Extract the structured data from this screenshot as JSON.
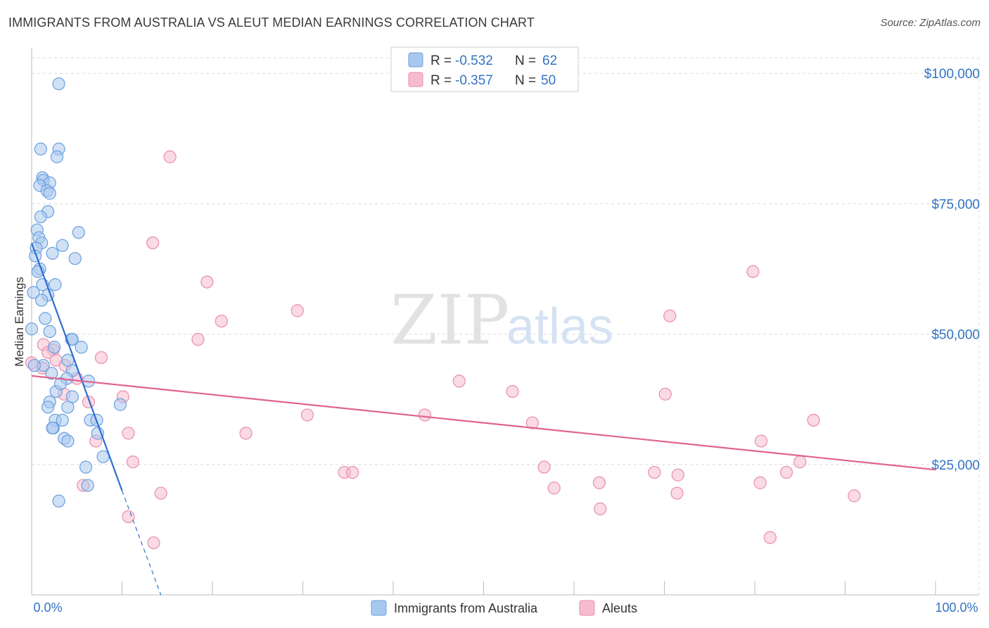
{
  "header": {
    "title": "IMMIGRANTS FROM AUSTRALIA VS ALEUT MEDIAN EARNINGS CORRELATION CHART",
    "source": "Source: ZipAtlas.com"
  },
  "watermark": {
    "zip": "ZIP",
    "atlas": "atlas"
  },
  "colors": {
    "blue_fill": "#a9c8ef",
    "blue_stroke": "#6a9fde",
    "blue_line": "#2f6fd0",
    "pink_fill": "#f6bccd",
    "pink_stroke": "#e98eab",
    "pink_line": "#e0648e",
    "axis_text": "#3373c4",
    "grid": "#dcdcdc"
  },
  "legend": {
    "rows": [
      {
        "r_label": "R = ",
        "r_value": "-0.532",
        "n_label": "N = ",
        "n_value": "62"
      },
      {
        "r_label": "R = ",
        "r_value": "-0.357",
        "n_label": "N = ",
        "n_value": "50"
      }
    ]
  },
  "chart_data": {
    "type": "scatter",
    "title": "IMMIGRANTS FROM AUSTRALIA VS ALEUT MEDIAN EARNINGS CORRELATION CHART",
    "xlabel": "",
    "ylabel": "Median Earnings",
    "xlim": [
      0,
      100
    ],
    "ylim": [
      0,
      103000
    ],
    "x_tick_labels": [
      "0.0%",
      "100.0%"
    ],
    "y_ticks": [
      25000,
      50000,
      75000,
      100000
    ],
    "y_tick_labels": [
      "$25,000",
      "$50,000",
      "$75,000",
      "$100,000"
    ],
    "grid": true,
    "series": [
      {
        "name": "Immigrants from Australia",
        "color": "blue",
        "regression": {
          "x0": 0,
          "y0": 67500,
          "x1": 10,
          "y1": 20000,
          "dash_to_x": 14.3,
          "dash_to_y": 0
        },
        "points": [
          [
            3,
            98000
          ],
          [
            1,
            85500
          ],
          [
            3,
            85500
          ],
          [
            2.8,
            84000
          ],
          [
            1.2,
            80000
          ],
          [
            1.3,
            79500
          ],
          [
            2,
            79000
          ],
          [
            0.9,
            78500
          ],
          [
            1.7,
            77500
          ],
          [
            2,
            77000
          ],
          [
            1.8,
            73500
          ],
          [
            1,
            72500
          ],
          [
            0.6,
            70000
          ],
          [
            5.2,
            69500
          ],
          [
            0.8,
            68500
          ],
          [
            1.1,
            67500
          ],
          [
            3.4,
            67000
          ],
          [
            0.5,
            66500
          ],
          [
            2.3,
            65500
          ],
          [
            0.4,
            65000
          ],
          [
            4.8,
            64500
          ],
          [
            0.9,
            62500
          ],
          [
            0.7,
            62000
          ],
          [
            2.6,
            59500
          ],
          [
            1.2,
            59500
          ],
          [
            1.8,
            57500
          ],
          [
            1.1,
            56500
          ],
          [
            0.2,
            58000
          ],
          [
            0,
            51000
          ],
          [
            2,
            50500
          ],
          [
            4.4,
            49000
          ],
          [
            4.5,
            49000
          ],
          [
            5.5,
            47500
          ],
          [
            2.5,
            47500
          ],
          [
            4,
            45000
          ],
          [
            1.3,
            44000
          ],
          [
            4.5,
            43000
          ],
          [
            2.2,
            42500
          ],
          [
            3.9,
            41500
          ],
          [
            6.3,
            41000
          ],
          [
            2.7,
            39000
          ],
          [
            4.5,
            38000
          ],
          [
            2,
            37000
          ],
          [
            9.8,
            36500
          ],
          [
            1.8,
            36000
          ],
          [
            4,
            36000
          ],
          [
            6.5,
            33500
          ],
          [
            2.6,
            33500
          ],
          [
            3.4,
            33500
          ],
          [
            7.2,
            33500
          ],
          [
            2.4,
            32000
          ],
          [
            2.3,
            32000
          ],
          [
            7.3,
            31000
          ],
          [
            3.6,
            30000
          ],
          [
            4,
            29500
          ],
          [
            7.9,
            26500
          ],
          [
            6,
            24500
          ],
          [
            6.2,
            21000
          ],
          [
            3,
            18000
          ],
          [
            0.3,
            44000
          ],
          [
            1.5,
            53000
          ],
          [
            3.2,
            40500
          ]
        ]
      },
      {
        "name": "Aleuts",
        "color": "pink",
        "regression": {
          "x0": 0,
          "y0": 42000,
          "x1": 100,
          "y1": 24000
        },
        "points": [
          [
            15.3,
            84000
          ],
          [
            13.4,
            67500
          ],
          [
            19.4,
            60000
          ],
          [
            79.8,
            62000
          ],
          [
            21,
            52500
          ],
          [
            29.4,
            54500
          ],
          [
            70.6,
            53500
          ],
          [
            18.4,
            49000
          ],
          [
            1.3,
            48000
          ],
          [
            2.4,
            47000
          ],
          [
            1.8,
            46500
          ],
          [
            7.7,
            45500
          ],
          [
            0,
            44500
          ],
          [
            2.7,
            45000
          ],
          [
            3.7,
            44000
          ],
          [
            5,
            41500
          ],
          [
            47.3,
            41000
          ],
          [
            53.2,
            39000
          ],
          [
            70.1,
            38500
          ],
          [
            3.6,
            38500
          ],
          [
            10.1,
            38000
          ],
          [
            6.3,
            37000
          ],
          [
            30.5,
            34500
          ],
          [
            43.5,
            34500
          ],
          [
            86.5,
            33500
          ],
          [
            55.4,
            33000
          ],
          [
            10.7,
            31000
          ],
          [
            23.7,
            31000
          ],
          [
            7.1,
            29500
          ],
          [
            80.7,
            29500
          ],
          [
            11.2,
            25500
          ],
          [
            85,
            25500
          ],
          [
            34.6,
            23500
          ],
          [
            35.5,
            23500
          ],
          [
            56.7,
            24500
          ],
          [
            68.9,
            23500
          ],
          [
            71.5,
            23000
          ],
          [
            83.5,
            23500
          ],
          [
            62.8,
            21500
          ],
          [
            80.6,
            21500
          ],
          [
            57.8,
            20500
          ],
          [
            5.7,
            21000
          ],
          [
            14.3,
            19500
          ],
          [
            71.4,
            19500
          ],
          [
            91,
            19000
          ],
          [
            62.9,
            16500
          ],
          [
            10.7,
            15000
          ],
          [
            13.5,
            10000
          ],
          [
            81.7,
            11000
          ],
          [
            1.2,
            43500
          ]
        ]
      }
    ]
  }
}
